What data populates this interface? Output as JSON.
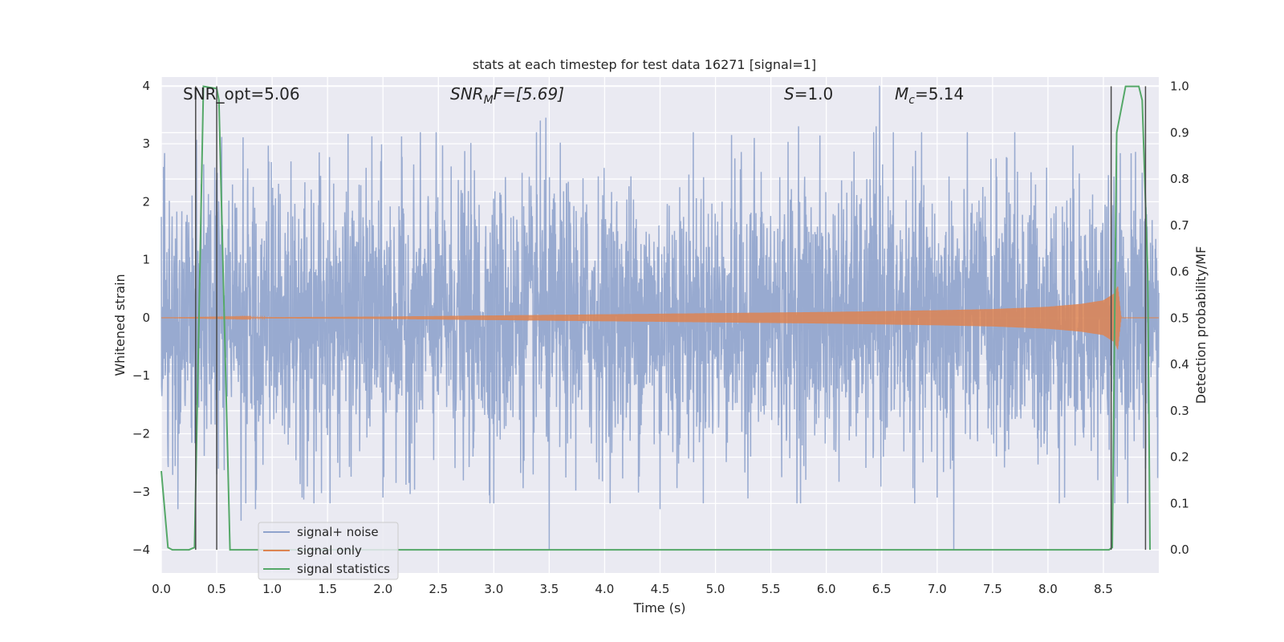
{
  "chart_data": {
    "type": "line",
    "title": "stats at each timestep for test data 16271 [signal=1]",
    "xlabel": "Time (s)",
    "ylabel": "Whitened strain",
    "y2label": "Detection probability/MF",
    "xlim": [
      0,
      9
    ],
    "ylim": [
      -4.4,
      4.15
    ],
    "y2lim": [
      -0.05,
      1.02
    ],
    "xticks": [
      "0.0",
      "0.5",
      "1.0",
      "1.5",
      "2.0",
      "2.5",
      "3.0",
      "3.5",
      "4.0",
      "4.5",
      "5.0",
      "5.5",
      "6.0",
      "6.5",
      "7.0",
      "7.5",
      "8.0",
      "8.5"
    ],
    "yticks": [
      "4",
      "3",
      "2",
      "1",
      "0",
      "−1",
      "−2",
      "−3",
      "−4"
    ],
    "y2ticks": [
      "1.0",
      "0.9",
      "0.8",
      "0.7",
      "0.6",
      "0.5",
      "0.4",
      "0.3",
      "0.2",
      "0.1",
      "0.0"
    ],
    "grid": true,
    "legend_position": "lower-left",
    "annotations": {
      "snr_opt": "SNR_opt=5.06",
      "snr_mf_var": "SNR",
      "snr_mf_sub": "M",
      "snr_mf_rest": "F=[5.69]",
      "s_var": "S",
      "s_rest": "=1.0",
      "mc_var": "M",
      "mc_sub": "c",
      "mc_rest": "=5.14"
    },
    "series": [
      {
        "name": "signal+ noise",
        "color": "#8fa3cc",
        "envelope_times": [
          0.0,
          0.5,
          1.0,
          1.5,
          2.0,
          2.5,
          3.0,
          3.5,
          4.0,
          4.5,
          5.0,
          5.5,
          6.0,
          6.5,
          7.0,
          7.5,
          8.0,
          8.5,
          9.0
        ],
        "typical_amplitude": 1.6,
        "peaks": [
          {
            "x": 0.02,
            "y": 2.6
          },
          {
            "x": 0.06,
            "y": -2.5
          },
          {
            "x": 0.15,
            "y": -3.3
          },
          {
            "x": 0.5,
            "y": 3.0
          },
          {
            "x": 0.5,
            "y": -2.7
          },
          {
            "x": 0.72,
            "y": -3.5
          },
          {
            "x": 0.85,
            "y": -3.3
          },
          {
            "x": 1.27,
            "y": 3.4
          },
          {
            "x": 1.27,
            "y": -3.1
          },
          {
            "x": 2.0,
            "y": -3.1
          },
          {
            "x": 3.0,
            "y": -3.2
          },
          {
            "x": 3.42,
            "y": 3.4
          },
          {
            "x": 3.47,
            "y": 3.45
          },
          {
            "x": 3.5,
            "y": -4.0
          },
          {
            "x": 4.5,
            "y": -3.3
          },
          {
            "x": 5.35,
            "y": 3.1
          },
          {
            "x": 5.75,
            "y": 3.3
          },
          {
            "x": 6.45,
            "y": 3.3
          },
          {
            "x": 6.48,
            "y": 4.0
          },
          {
            "x": 7.0,
            "y": -3.1
          },
          {
            "x": 7.15,
            "y": -4.0
          },
          {
            "x": 7.7,
            "y": 3.2
          },
          {
            "x": 8.15,
            "y": -3.1
          },
          {
            "x": 8.45,
            "y": -2.8
          },
          {
            "x": 8.85,
            "y": 2.5
          },
          {
            "x": 8.88,
            "y": -2.6
          }
        ]
      },
      {
        "name": "signal only",
        "color": "#dd8452",
        "envelope": [
          {
            "t": 0.0,
            "a": 0.0
          },
          {
            "t": 2.0,
            "a": 0.02
          },
          {
            "t": 3.0,
            "a": 0.04
          },
          {
            "t": 4.0,
            "a": 0.06
          },
          {
            "t": 5.0,
            "a": 0.08
          },
          {
            "t": 6.0,
            "a": 0.1
          },
          {
            "t": 7.0,
            "a": 0.13
          },
          {
            "t": 7.5,
            "a": 0.15
          },
          {
            "t": 8.0,
            "a": 0.19
          },
          {
            "t": 8.3,
            "a": 0.24
          },
          {
            "t": 8.5,
            "a": 0.3
          },
          {
            "t": 8.6,
            "a": 0.42
          },
          {
            "t": 8.63,
            "a": 0.55
          },
          {
            "t": 8.66,
            "a": 0.0
          },
          {
            "t": 9.0,
            "a": 0.0
          }
        ]
      },
      {
        "name": "signal statistics",
        "color": "#55a868",
        "x": [
          0.0,
          0.06,
          0.1,
          0.25,
          0.3,
          0.38,
          0.5,
          0.52,
          0.62,
          0.7,
          1.0,
          2.0,
          3.0,
          4.0,
          5.0,
          6.0,
          7.0,
          8.0,
          8.55,
          8.58,
          8.62,
          8.7,
          8.82,
          8.85,
          8.9,
          8.92
        ],
        "y": [
          0.17,
          0.005,
          0.0,
          0.0,
          0.005,
          1.0,
          0.995,
          0.97,
          0.0,
          0.0,
          0.0,
          0.0,
          0.0,
          0.0,
          0.0,
          0.0,
          0.0,
          0.0,
          0.0,
          0.005,
          0.9,
          1.0,
          1.0,
          0.97,
          0.6,
          0.0
        ]
      }
    ],
    "markers": [
      0.31,
      0.5,
      8.57,
      8.88
    ]
  },
  "colors": {
    "plot_bg": "#eaeaf2",
    "grid": "#ffffff",
    "marker_line": "#4a4a4a"
  }
}
